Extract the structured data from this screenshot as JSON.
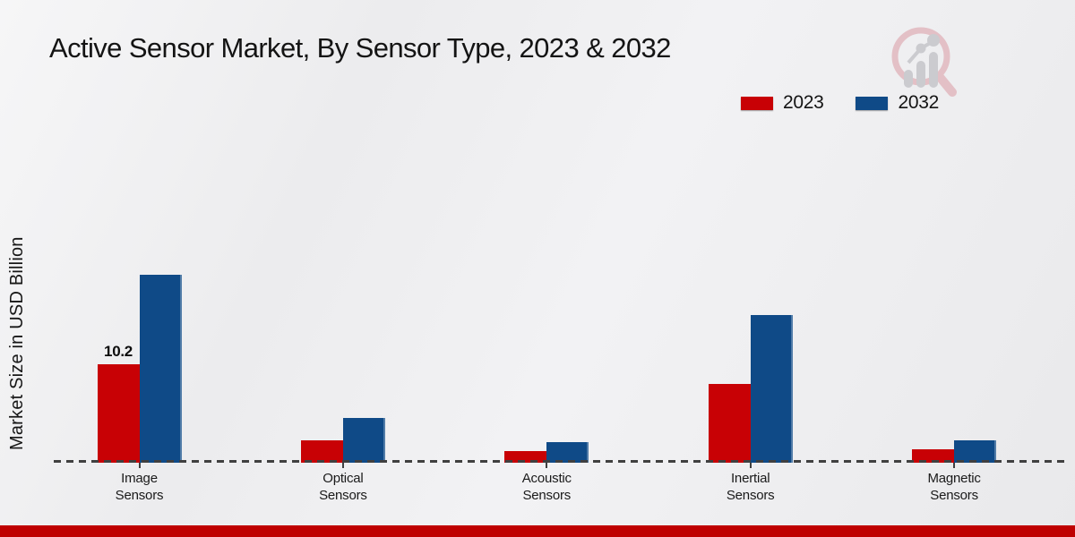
{
  "header": {
    "title": "Active Sensor Market, By Sensor Type, 2023 & 2032"
  },
  "chart_data": {
    "type": "bar",
    "title": "Active Sensor Market, By Sensor Type, 2023 & 2032",
    "xlabel": "",
    "ylabel": "Market Size in USD Billion",
    "categories": [
      "Image Sensors",
      "Optical Sensors",
      "Acoustic Sensors",
      "Inertial Sensors",
      "Magnetic Sensors"
    ],
    "category_label_lines": [
      [
        "Image",
        "Sensors"
      ],
      [
        "Optical",
        "Sensors"
      ],
      [
        "Acoustic",
        "Sensors"
      ],
      [
        "Inertial",
        "Sensors"
      ],
      [
        "Magnetic",
        "Sensors"
      ]
    ],
    "series": [
      {
        "name": "2023",
        "color": "#c80105",
        "values": [
          10.2,
          2.3,
          1.2,
          8.2,
          1.4
        ]
      },
      {
        "name": "2032",
        "color": "#0f4a87",
        "values": [
          19.5,
          4.6,
          2.1,
          15.3,
          2.3
        ]
      }
    ],
    "data_labels": [
      {
        "series_index": 0,
        "category_index": 0,
        "text": "10.2"
      }
    ],
    "ylim": [
      0,
      22
    ],
    "grid": false,
    "baseline_style": "dashed",
    "legend_position": "top-right"
  },
  "legend": {
    "items": [
      {
        "label": "2023",
        "color": "#c80105"
      },
      {
        "label": "2032",
        "color": "#0f4a87"
      }
    ]
  },
  "colors": {
    "accent_red": "#c80105",
    "accent_blue": "#0f4a87",
    "footer_stripe": "#bf0000",
    "baseline_gray": "#404040",
    "logo_pink": "#e3bdc3",
    "logo_gray": "#c9c9cd"
  },
  "icons": {
    "brand_logo": "magnifier-bar-chart-logo"
  }
}
